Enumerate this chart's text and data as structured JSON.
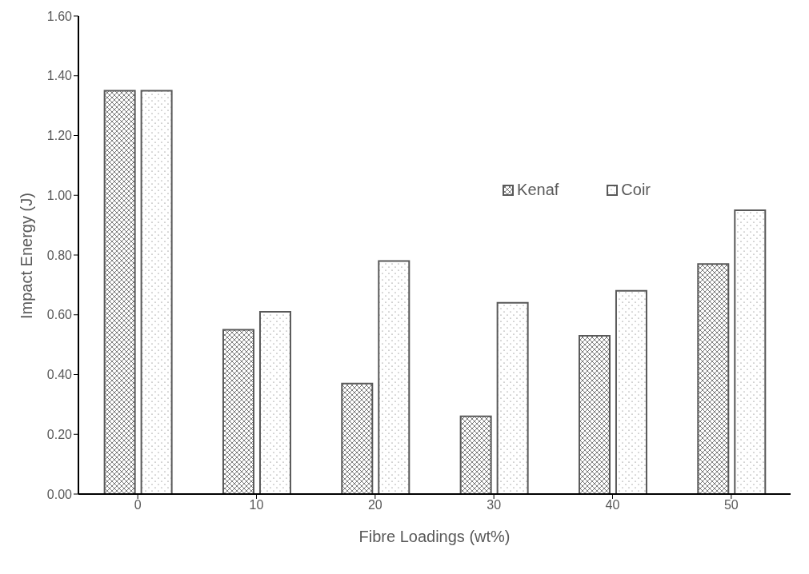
{
  "chart_data": {
    "type": "bar",
    "xlabel": "Fibre Loadings (wt%)",
    "ylabel": "Impact Energy (J)",
    "categories": [
      "0",
      "10",
      "20",
      "30",
      "40",
      "50"
    ],
    "series": [
      {
        "name": "Kenaf",
        "color": "#595959",
        "values": [
          1.35,
          0.55,
          0.37,
          0.26,
          0.53,
          0.77
        ]
      },
      {
        "name": "Coir",
        "color": "#595959",
        "values": [
          1.35,
          0.61,
          0.78,
          0.64,
          0.68,
          0.95
        ]
      }
    ],
    "ylim": [
      0,
      1.6
    ],
    "yticks": [
      {
        "value": 0,
        "label": "0.00"
      },
      {
        "value": 0.2,
        "label": "0.20"
      },
      {
        "value": 0.4,
        "label": "0.40"
      },
      {
        "value": 0.6,
        "label": "0.60"
      },
      {
        "value": 0.8,
        "label": "0.80"
      },
      {
        "value": 1,
        "label": "1.00"
      },
      {
        "value": 1.2,
        "label": "1.20"
      },
      {
        "value": 1.4,
        "label": "1.40"
      },
      {
        "value": 1.6,
        "label": "1.60"
      }
    ],
    "grid": false,
    "legend": "top right"
  }
}
